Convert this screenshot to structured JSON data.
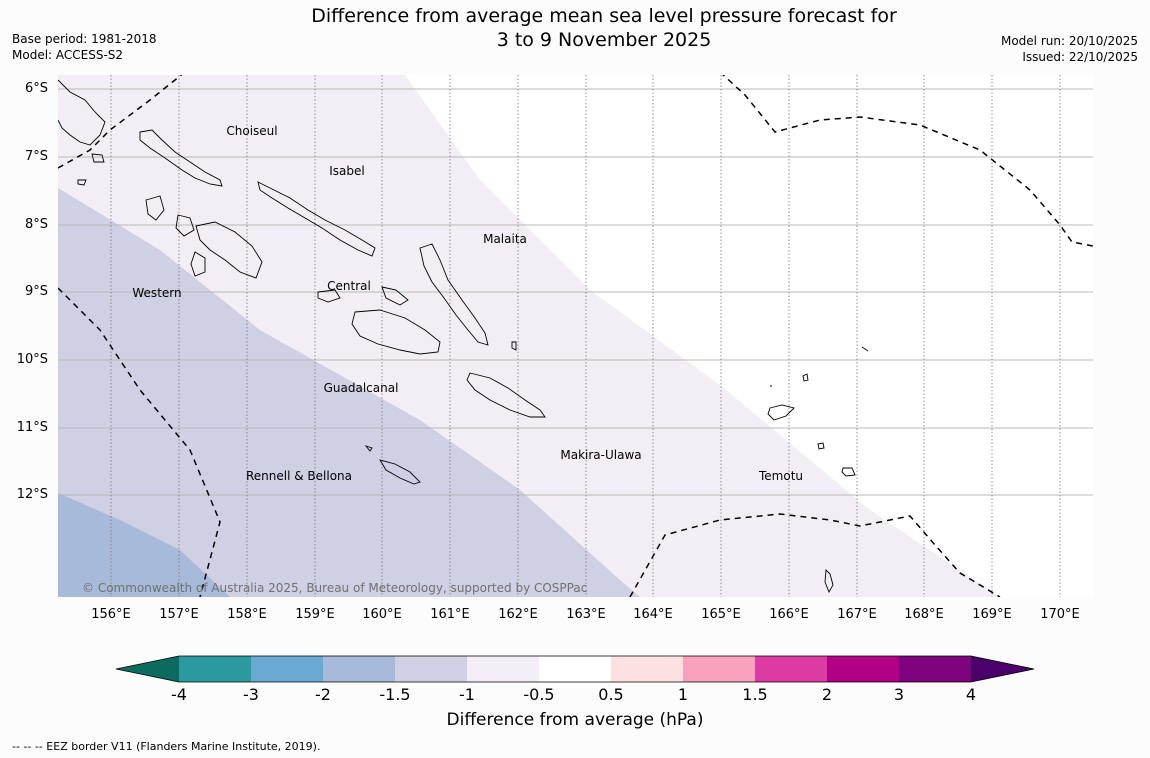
{
  "title": {
    "line1": "Difference from average mean sea level pressure forecast for",
    "line2": "3 to 9 November 2025"
  },
  "meta_left": {
    "base_period": "Base period: 1981-2018",
    "model": "Model: ACCESS-S2"
  },
  "meta_right": {
    "model_run": "Model run: 20/10/2025",
    "issued": "Issued: 22/10/2025"
  },
  "copyright": "© Commonwealth of Australia 2025, Bureau of Meteorology, supported by COSPPac",
  "latitudes": [
    "6°S",
    "7°S",
    "8°S",
    "9°S",
    "10°S",
    "11°S",
    "12°S"
  ],
  "longitudes": [
    "156°E",
    "157°E",
    "158°E",
    "159°E",
    "160°E",
    "161°E",
    "162°E",
    "163°E",
    "164°E",
    "165°E",
    "166°E",
    "167°E",
    "168°E",
    "169°E",
    "170°E"
  ],
  "provinces": {
    "choiseul": "Choiseul",
    "isabel": "Isabel",
    "malaita": "Malaita",
    "western": "Western",
    "central": "Central",
    "guadalcanal": "Guadalcanal",
    "makira": "Makira-Ulawa",
    "temotu": "Temotu",
    "rennell": "Rennell & Bellona"
  },
  "colorbar": {
    "ticks": [
      "-4",
      "-3",
      "-2",
      "-1.5",
      "-1",
      "-0.5",
      "0.5",
      "1",
      "1.5",
      "2",
      "3",
      "4"
    ],
    "colors": {
      "lt_m4": "#0a6b5e",
      "m4_m3": "#2a9a9f",
      "m3_m2": "#6aa9d2",
      "m2_m15": "#a7bad9",
      "m15_m1": "#cfd0e4",
      "m1_m05": "#f3eef6",
      "m05_05": "#ffffff",
      "05_1": "#fde0e0",
      "1_15": "#f7a1bd",
      "15_2": "#dc3ba3",
      "2_3": "#b10086",
      "3_4": "#7e037c",
      "gt_4": "#4a0068"
    },
    "label": "Difference from average (hPa)"
  },
  "footnote": "--  --  -- EEZ border V11 (Flanders Marine Institute, 2019)."
}
